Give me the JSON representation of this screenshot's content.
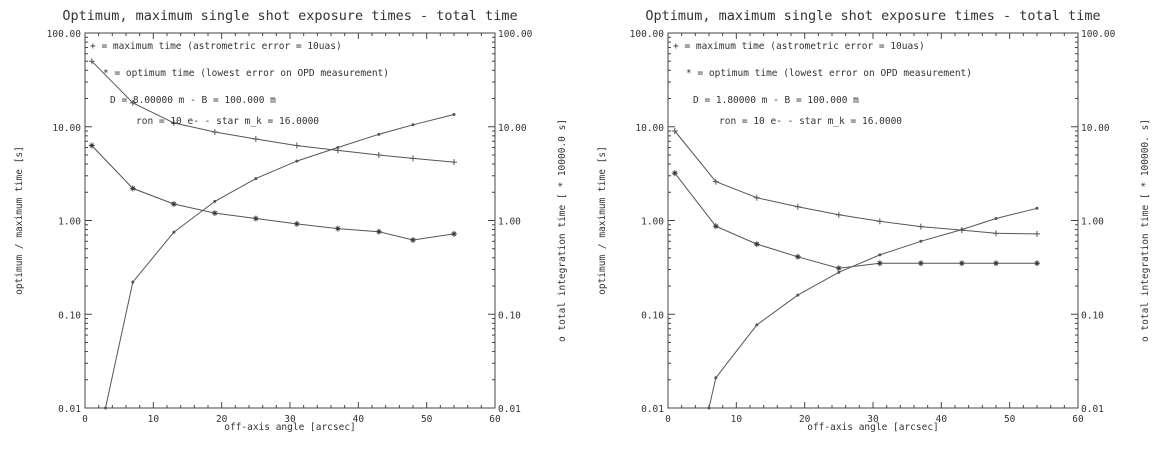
{
  "chart_data": [
    {
      "type": "line",
      "title": "Optimum, maximum single shot exposure times - total time",
      "xlabel": "off-axis angle [arcsec]",
      "ylabel": "optimum / maximum time [s]",
      "y2label": "o  total integration time [ * 10000.0 s]",
      "xlim": [
        0,
        60
      ],
      "ylim": [
        0.01,
        100
      ],
      "yscale": "log",
      "x_ticks": [
        "0",
        "10",
        "20",
        "30",
        "40",
        "50",
        "60"
      ],
      "y_ticks": [
        "0.01",
        "0.10",
        "1.00",
        "10.00",
        "100.00"
      ],
      "legend_lines": [
        "+ = maximum time (astrometric error = 10uas)",
        "* = optimum time (lowest error on OPD measurement)",
        "D = 8.00000 m  -  B = 100.000 m",
        "ron = 10 e-  -  star m_k = 16.0000"
      ],
      "series": [
        {
          "marker": "+",
          "x": [
            1,
            7,
            13,
            19,
            25,
            31,
            37,
            43,
            48,
            54
          ],
          "values": [
            50,
            18,
            11,
            8.8,
            7.4,
            6.3,
            5.6,
            5.0,
            4.6,
            4.2
          ]
        },
        {
          "marker": "*",
          "x": [
            1,
            7,
            13,
            19,
            25,
            31,
            37,
            43,
            48,
            54
          ],
          "values": [
            6.3,
            2.2,
            1.5,
            1.2,
            1.05,
            0.92,
            0.82,
            0.76,
            0.62,
            0.72
          ]
        },
        {
          "marker": "o",
          "x": [
            3,
            7,
            13,
            19,
            25,
            31,
            37,
            43,
            48,
            54
          ],
          "values": [
            0.01,
            0.22,
            0.75,
            1.6,
            2.8,
            4.3,
            6.0,
            8.3,
            10.5,
            13.5
          ]
        }
      ]
    },
    {
      "type": "line",
      "title": "Optimum, maximum single shot exposure times - total time",
      "xlabel": "off-axis angle [arcsec]",
      "ylabel": "optimum / maximum time [s]",
      "y2label": "o  total integration time [ * 100000. s]",
      "xlim": [
        0,
        60
      ],
      "ylim": [
        0.01,
        100
      ],
      "yscale": "log",
      "x_ticks": [
        "0",
        "10",
        "20",
        "30",
        "40",
        "50",
        "60"
      ],
      "y_ticks": [
        "0.01",
        "0.10",
        "1.00",
        "10.00",
        "100.00"
      ],
      "legend_lines": [
        "+ = maximum time (astrometric error = 10uas)",
        "* = optimum time (lowest error on OPD measurement)",
        "D = 1.80000 m  -  B = 100.000 m",
        "ron = 10 e-  -  star m_k = 16.0000"
      ],
      "series": [
        {
          "marker": "+",
          "x": [
            1,
            7,
            13,
            19,
            25,
            31,
            37,
            43,
            48,
            54
          ],
          "values": [
            9.0,
            2.6,
            1.75,
            1.4,
            1.15,
            0.98,
            0.86,
            0.79,
            0.73,
            0.72
          ]
        },
        {
          "marker": "*",
          "x": [
            1,
            7,
            13,
            19,
            25,
            31,
            37,
            43,
            48,
            54
          ],
          "values": [
            3.2,
            0.87,
            0.56,
            0.41,
            0.31,
            0.35,
            0.35,
            0.35,
            0.35,
            0.35
          ]
        },
        {
          "marker": "o",
          "x": [
            6,
            7,
            13,
            19,
            25,
            31,
            37,
            43,
            48,
            54
          ],
          "values": [
            0.01,
            0.021,
            0.077,
            0.16,
            0.28,
            0.43,
            0.6,
            0.8,
            1.05,
            1.35
          ]
        }
      ]
    }
  ]
}
